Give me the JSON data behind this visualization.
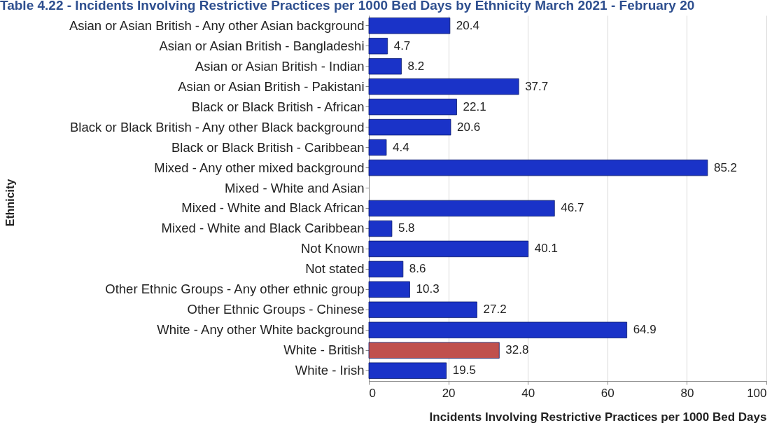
{
  "chart_data": {
    "type": "bar",
    "orientation": "horizontal",
    "title": "Table 4.22 - Incidents Involving Restrictive Practices per 1000 Bed Days by Ethnicity March 2021 - February 20",
    "xlabel": "Incidents Involving Restrictive Practices per 1000 Bed Days",
    "ylabel": "Ethnicity",
    "categories": [
      "Asian or Asian British - Any other Asian background",
      "Asian or Asian British - Bangladeshi",
      "Asian or Asian British - Indian",
      "Asian or Asian British - Pakistani",
      "Black or Black British - African",
      "Black or Black British - Any other Black background",
      "Black or Black British - Caribbean",
      "Mixed - Any other mixed background",
      "Mixed - White and Asian",
      "Mixed - White and Black African",
      "Mixed - White and Black Caribbean",
      "Not Known",
      "Not stated",
      "Other Ethnic Groups - Any other ethnic group",
      "Other Ethnic Groups - Chinese",
      "White - Any other White background",
      "White - British",
      "White - Irish"
    ],
    "values": [
      20.4,
      4.7,
      8.2,
      37.7,
      22.1,
      20.6,
      4.4,
      85.2,
      null,
      46.7,
      5.8,
      40.1,
      8.6,
      10.3,
      27.2,
      64.9,
      32.8,
      19.5
    ],
    "colors": [
      "#1a33c8",
      "#1a33c8",
      "#1a33c8",
      "#1a33c8",
      "#1a33c8",
      "#1a33c8",
      "#1a33c8",
      "#1a33c8",
      "#1a33c8",
      "#1a33c8",
      "#1a33c8",
      "#1a33c8",
      "#1a33c8",
      "#1a33c8",
      "#1a33c8",
      "#1a33c8",
      "#c0504d",
      "#1a33c8"
    ],
    "xlim": [
      0,
      100
    ],
    "xticks": [
      0,
      20,
      40,
      60,
      80,
      100
    ],
    "grid": "x",
    "data_labels": true
  }
}
